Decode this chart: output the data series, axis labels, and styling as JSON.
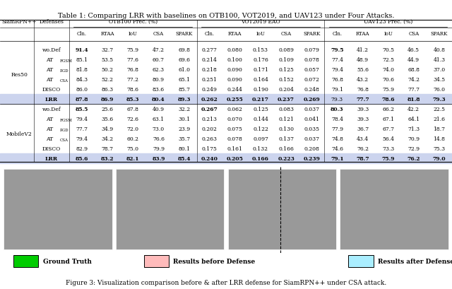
{
  "title": "Table 1: Comparing LRR with baselines on OTB100, VOT2019, and UAV123 under Four Attacks.",
  "caption": "Figure 3: Visualization comparison before & after LRR defense for SiamRPN++ under CSA attack.",
  "legend_items": [
    {
      "label": "Ground Truth",
      "color": "#00cc00"
    },
    {
      "label": "Results before Defense",
      "color": "#ffbbbb"
    },
    {
      "label": "Results after Defense",
      "color": "#aaeeff"
    }
  ],
  "rows": [
    {
      "backbone": "Res50",
      "defense": "wo.Def",
      "otb": [
        "91.4",
        "32.7",
        "75.9",
        "47.2",
        "69.8"
      ],
      "vot": [
        "0.277",
        "0.080",
        "0.153",
        "0.089",
        "0.079"
      ],
      "uav": [
        "79.5",
        "41.2",
        "70.5",
        "46.5",
        "40.8"
      ],
      "bold_otb": [
        0
      ],
      "bold_vot": [],
      "bold_uav": [
        0
      ]
    },
    {
      "backbone": "",
      "defense": "AT_FGSM",
      "otb": [
        "85.1",
        "53.5",
        "77.6",
        "60.7",
        "69.6"
      ],
      "vot": [
        "0.214",
        "0.100",
        "0.176",
        "0.109",
        "0.078"
      ],
      "uav": [
        "77.4",
        "48.9",
        "72.5",
        "44.9",
        "41.3"
      ],
      "bold_otb": [],
      "bold_vot": [],
      "bold_uav": []
    },
    {
      "backbone": "",
      "defense": "AT_PGD",
      "otb": [
        "81.8",
        "50.2",
        "76.8",
        "62.3",
        "61.0"
      ],
      "vot": [
        "0.218",
        "0.090",
        "0.171",
        "0.125",
        "0.057"
      ],
      "uav": [
        "79.4",
        "55.6",
        "74.0",
        "68.8",
        "37.0"
      ],
      "bold_otb": [],
      "bold_vot": [],
      "bold_uav": []
    },
    {
      "backbone": "",
      "defense": "AT_CSA",
      "otb": [
        "84.3",
        "52.2",
        "77.2",
        "80.9",
        "65.1"
      ],
      "vot": [
        "0.251",
        "0.090",
        "0.164",
        "0.152",
        "0.072"
      ],
      "uav": [
        "76.8",
        "43.2",
        "70.6",
        "74.2",
        "34.5"
      ],
      "bold_otb": [],
      "bold_vot": [],
      "bold_uav": []
    },
    {
      "backbone": "",
      "defense": "DISCO",
      "otb": [
        "86.0",
        "86.3",
        "78.6",
        "83.6",
        "85.7"
      ],
      "vot": [
        "0.249",
        "0.244",
        "0.190",
        "0.204",
        "0.248"
      ],
      "uav": [
        "79.1",
        "76.8",
        "75.9",
        "77.7",
        "76.0"
      ],
      "bold_otb": [],
      "bold_vot": [],
      "bold_uav": []
    },
    {
      "backbone": "",
      "defense": "LRR",
      "otb": [
        "87.8",
        "86.9",
        "85.3",
        "80.4",
        "89.3"
      ],
      "vot": [
        "0.262",
        "0.255",
        "0.217",
        "0.237",
        "0.269"
      ],
      "uav": [
        "79.3",
        "77.7",
        "78.6",
        "81.8",
        "79.3"
      ],
      "bold_otb": [
        0,
        1,
        2,
        3,
        4
      ],
      "bold_vot": [
        0,
        1,
        2,
        3,
        4
      ],
      "bold_uav": [
        1,
        2,
        3,
        4
      ],
      "highlight": true
    },
    {
      "backbone": "MobileV2",
      "defense": "wo.Def",
      "otb": [
        "85.5",
        "25.6",
        "67.8",
        "40.9",
        "32.2"
      ],
      "vot": [
        "0.267",
        "0.062",
        "0.125",
        "0.083",
        "0.037"
      ],
      "uav": [
        "80.3",
        "39.3",
        "66.2",
        "42.2",
        "22.5"
      ],
      "bold_otb": [
        0
      ],
      "bold_vot": [
        0
      ],
      "bold_uav": [
        0
      ]
    },
    {
      "backbone": "",
      "defense": "AT_FGSM",
      "otb": [
        "79.4",
        "35.6",
        "72.6",
        "63.1",
        "30.1"
      ],
      "vot": [
        "0.213",
        "0.070",
        "0.144",
        "0.121",
        "0.041"
      ],
      "uav": [
        "78.4",
        "39.3",
        "67.1",
        "64.1",
        "21.6"
      ],
      "bold_otb": [],
      "bold_vot": [],
      "bold_uav": []
    },
    {
      "backbone": "",
      "defense": "AT_PGD",
      "otb": [
        "77.7",
        "34.9",
        "72.0",
        "73.0",
        "23.9"
      ],
      "vot": [
        "0.202",
        "0.075",
        "0.122",
        "0.130",
        "0.035"
      ],
      "uav": [
        "77.9",
        "36.7",
        "67.7",
        "71.3",
        "18.7"
      ],
      "bold_otb": [],
      "bold_vot": [],
      "bold_uav": []
    },
    {
      "backbone": "",
      "defense": "AT_CSA",
      "otb": [
        "79.4",
        "34.2",
        "60.2",
        "76.6",
        "35.7"
      ],
      "vot": [
        "0.263",
        "0.078",
        "0.097",
        "0.137",
        "0.037"
      ],
      "uav": [
        "74.8",
        "43.4",
        "56.4",
        "70.9",
        "14.8"
      ],
      "bold_otb": [],
      "bold_vot": [],
      "bold_uav": []
    },
    {
      "backbone": "",
      "defense": "DISCO",
      "otb": [
        "82.9",
        "78.7",
        "75.0",
        "79.9",
        "80.1"
      ],
      "vot": [
        "0.175",
        "0.161",
        "0.132",
        "0.166",
        "0.208"
      ],
      "uav": [
        "74.6",
        "76.2",
        "73.3",
        "72.9",
        "75.3"
      ],
      "bold_otb": [],
      "bold_vot": [],
      "bold_uav": []
    },
    {
      "backbone": "",
      "defense": "LRR",
      "otb": [
        "85.6",
        "83.2",
        "82.1",
        "83.9",
        "85.4"
      ],
      "vot": [
        "0.240",
        "0.205",
        "0.166",
        "0.223",
        "0.239"
      ],
      "uav": [
        "79.1",
        "78.7",
        "75.9",
        "76.2",
        "79.0"
      ],
      "bold_otb": [
        0,
        1,
        2,
        3,
        4
      ],
      "bold_vot": [
        0,
        1,
        2,
        3,
        4
      ],
      "bold_uav": [
        0,
        1,
        2,
        3,
        4
      ],
      "highlight": true
    }
  ],
  "highlight_color": "#ccd4ee",
  "font_size": 5.5,
  "image_placeholder_color": "#888888"
}
